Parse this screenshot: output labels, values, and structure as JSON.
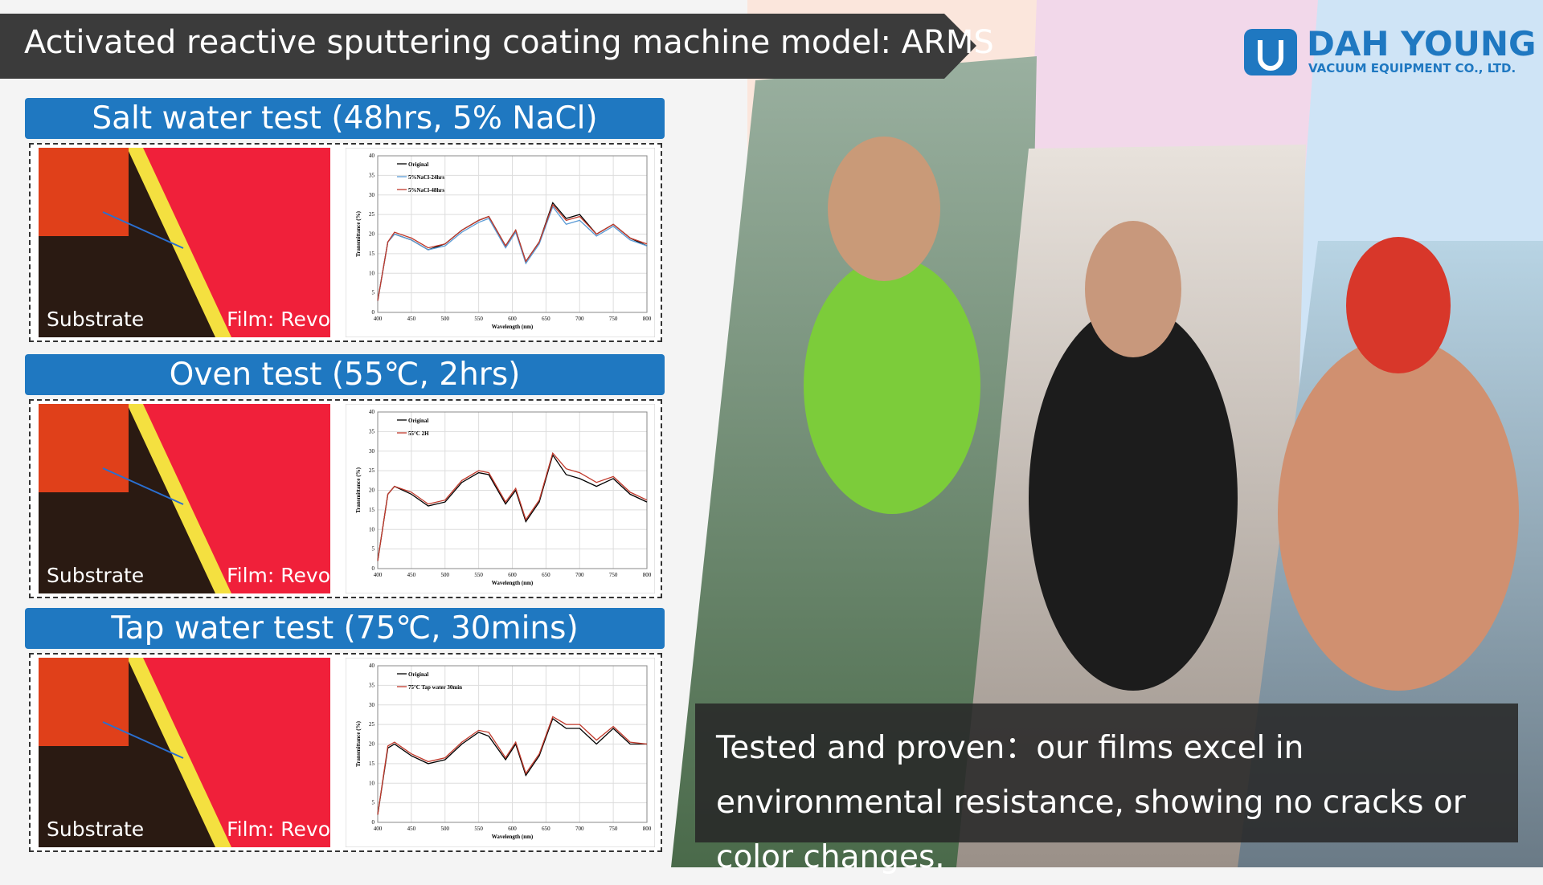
{
  "header": {
    "title": "Activated reactive sputtering coating machine model: ARMS"
  },
  "logo": {
    "name": "DAH YOUNG",
    "subtitle": "VACUUM EQUIPMENT CO., LTD."
  },
  "panels": [
    {
      "title": "Salt water test (48hrs, 5% NaCl)",
      "substrate_label": "Substrate",
      "film_label": "Film: Revo"
    },
    {
      "title": "Oven test (55℃, 2hrs)",
      "substrate_label": "Substrate",
      "film_label": "Film: Revo"
    },
    {
      "title": "Tap water test (75℃, 30mins)",
      "substrate_label": "Substrate",
      "film_label": "Film: Revo"
    }
  ],
  "caption": "Tested and proven：our films excel in environmental resistance, showing no cracks or color changes.",
  "chart_data": [
    {
      "type": "line",
      "x_label": "Wavelength (nm)",
      "y_label": "Transmittance (%)",
      "x": [
        400,
        415,
        425,
        450,
        475,
        500,
        525,
        550,
        565,
        590,
        605,
        620,
        640,
        660,
        680,
        700,
        725,
        750,
        775,
        800
      ],
      "series": [
        {
          "name": "Original",
          "color": "#000000",
          "values": [
            3,
            18,
            20,
            18.5,
            16,
            17.5,
            21,
            23.5,
            24.5,
            17,
            21,
            13,
            18,
            28,
            24,
            25,
            20,
            22.5,
            19,
            17
          ]
        },
        {
          "name": "5%NaCl-24hrs",
          "color": "#5b9bd5",
          "values": [
            3,
            18,
            20,
            18.5,
            16,
            17,
            20.5,
            23,
            24,
            16.5,
            20.5,
            12.5,
            17.5,
            27,
            22.5,
            23.5,
            19.5,
            22,
            18.5,
            17
          ]
        },
        {
          "name": "5%NaCl-48hrs",
          "color": "#c0392b",
          "values": [
            3,
            18,
            20.5,
            19,
            16.5,
            17.5,
            21,
            23.5,
            24.5,
            17,
            21,
            13,
            18,
            27.5,
            23.5,
            24.5,
            20,
            22.5,
            19,
            17.5
          ]
        }
      ],
      "xlim": [
        400,
        800
      ],
      "xticks": [
        400,
        450,
        500,
        550,
        600,
        650,
        700,
        750,
        800
      ],
      "ylim": [
        0,
        40
      ],
      "yticks": [
        0,
        5,
        10,
        15,
        20,
        25,
        30,
        35,
        40
      ],
      "grid": true
    },
    {
      "type": "line",
      "x_label": "Wavelength (nm)",
      "y_label": "Transmittance (%)",
      "x": [
        400,
        415,
        425,
        450,
        475,
        500,
        525,
        550,
        565,
        590,
        605,
        620,
        640,
        660,
        680,
        700,
        725,
        750,
        775,
        800
      ],
      "series": [
        {
          "name": "Original",
          "color": "#000000",
          "values": [
            2,
            19,
            21,
            19,
            16,
            17,
            22,
            24.5,
            24,
            16.5,
            20,
            12,
            17,
            29,
            24,
            23,
            21,
            23,
            19,
            17
          ]
        },
        {
          "name": "55°C 2H",
          "color": "#c0392b",
          "values": [
            2,
            19,
            21,
            19.5,
            16.5,
            17.5,
            22.5,
            25,
            24.5,
            17,
            20.5,
            12.5,
            17.5,
            29.5,
            25.5,
            24.5,
            22,
            23.5,
            19.5,
            17.5
          ]
        }
      ],
      "xlim": [
        400,
        800
      ],
      "xticks": [
        400,
        450,
        500,
        550,
        600,
        650,
        700,
        750,
        800
      ],
      "ylim": [
        0,
        40
      ],
      "yticks": [
        0,
        5,
        10,
        15,
        20,
        25,
        30,
        35,
        40
      ],
      "grid": true
    },
    {
      "type": "line",
      "x_label": "Wavelength (nm)",
      "y_label": "Transmittance (%)",
      "x": [
        400,
        415,
        425,
        450,
        475,
        500,
        525,
        550,
        565,
        590,
        605,
        620,
        640,
        660,
        680,
        700,
        725,
        750,
        775,
        800
      ],
      "series": [
        {
          "name": "Original",
          "color": "#000000",
          "values": [
            2,
            19,
            20,
            17,
            15,
            16,
            20,
            23,
            22,
            16,
            20,
            12,
            17,
            26.5,
            24,
            24,
            20,
            24,
            20,
            20
          ]
        },
        {
          "name": "75°C Tap water 30min",
          "color": "#c0392b",
          "values": [
            2,
            19.5,
            20.5,
            17.5,
            15.5,
            16.5,
            20.5,
            23.5,
            23,
            16.5,
            20.5,
            12.5,
            17.5,
            27,
            25,
            25,
            21,
            24.5,
            20.5,
            20
          ]
        }
      ],
      "xlim": [
        400,
        800
      ],
      "xticks": [
        400,
        450,
        500,
        550,
        600,
        650,
        700,
        750,
        800
      ],
      "ylim": [
        0,
        40
      ],
      "yticks": [
        0,
        5,
        10,
        15,
        20,
        25,
        30,
        35,
        40
      ],
      "grid": true
    }
  ]
}
